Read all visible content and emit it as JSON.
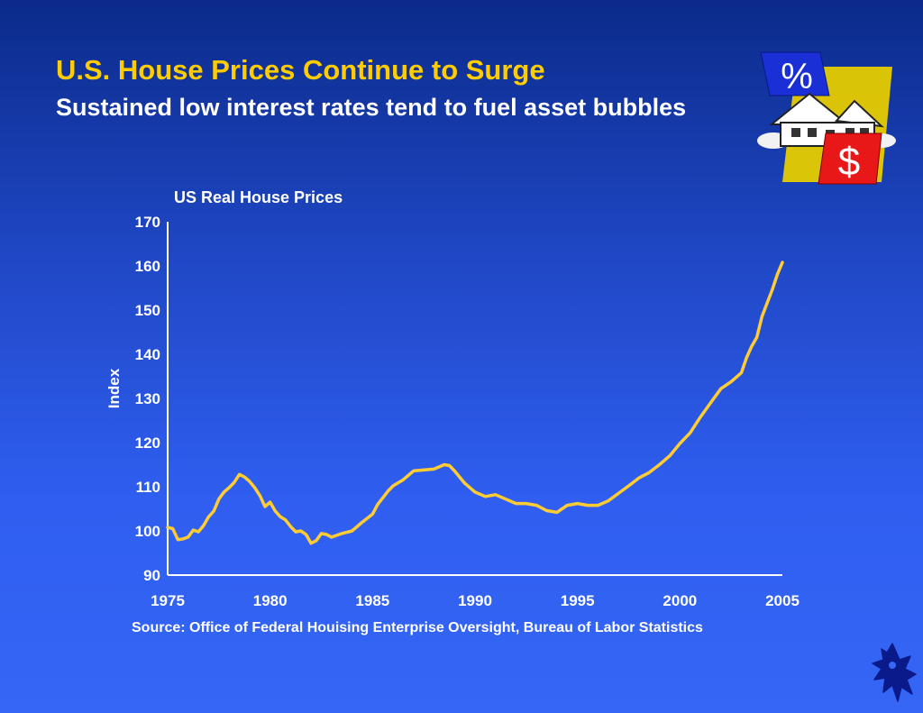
{
  "slide": {
    "title": "U.S. House Prices Continue to Surge",
    "subtitle": "Sustained low interest rates tend to fuel asset bubbles",
    "source": "Source: Office of Federal Houising Enterprise Oversight, Bureau of Labor Statistics",
    "icons": [
      "percent-sign-icon",
      "house-icon",
      "dollar-sign-icon",
      "griffin-logo-icon"
    ],
    "icon_text": {
      "percent": "%",
      "dollar": "$"
    }
  },
  "colors": {
    "title": "#ffcc00",
    "line": "#ffcc33",
    "axis": "#ffffff",
    "text": "#ffffff"
  },
  "chart_data": {
    "type": "line",
    "title": "US Real House Prices",
    "ylabel": "Index",
    "xlabel": "",
    "xlim": [
      1975,
      2005
    ],
    "ylim": [
      90,
      170
    ],
    "xticks": [
      1975,
      1980,
      1985,
      1990,
      1995,
      2000,
      2005
    ],
    "yticks": [
      90,
      100,
      110,
      120,
      130,
      140,
      150,
      160,
      170
    ],
    "grid": false,
    "series": [
      {
        "x": [
          1975.0,
          1975.25,
          1975.5,
          1975.75,
          1976.0,
          1976.25,
          1976.5,
          1976.75,
          1977.0,
          1977.25,
          1977.5,
          1977.75,
          1978.0,
          1978.25,
          1978.5,
          1978.75,
          1979.0,
          1979.25,
          1979.5,
          1979.75,
          1980.0,
          1980.25,
          1980.5,
          1980.75,
          1981.0,
          1981.25,
          1981.5,
          1981.75,
          1982.0,
          1982.25,
          1982.5,
          1982.75,
          1983.0,
          1983.5,
          1984.0,
          1984.5,
          1985.0,
          1985.25,
          1985.5,
          1985.75,
          1986.0,
          1986.5,
          1987.0,
          1987.5,
          1988.0,
          1988.5,
          1988.75,
          1989.0,
          1989.25,
          1989.5,
          1990.0,
          1990.5,
          1991.0,
          1991.5,
          1992.0,
          1992.5,
          1993.0,
          1993.5,
          1994.0,
          1994.5,
          1995.0,
          1995.5,
          1996.0,
          1996.5,
          1997.0,
          1997.5,
          1998.0,
          1998.5,
          1999.0,
          1999.5,
          2000.0,
          2000.5,
          2001.0,
          2001.5,
          2002.0,
          2002.5,
          2003.0,
          2003.25,
          2003.5,
          2003.75,
          2004.0,
          2004.25,
          2004.5,
          2004.75,
          2005.0
        ],
        "values": [
          100.8,
          100.5,
          98.0,
          98.2,
          98.6,
          100.2,
          99.8,
          101.2,
          103.2,
          104.5,
          107.2,
          108.8,
          109.8,
          111.0,
          112.8,
          112.2,
          111.2,
          109.8,
          108.0,
          105.5,
          106.5,
          104.5,
          103.2,
          102.5,
          101.0,
          99.8,
          100.0,
          99.2,
          97.2,
          97.8,
          99.4,
          99.2,
          98.6,
          99.4,
          100.0,
          102.0,
          103.8,
          106.0,
          107.5,
          109.0,
          110.2,
          111.6,
          113.6,
          113.8,
          114.0,
          115.0,
          114.8,
          113.6,
          112.2,
          110.8,
          108.8,
          107.8,
          108.2,
          107.2,
          106.2,
          106.2,
          105.8,
          104.6,
          104.2,
          105.8,
          106.2,
          105.8,
          105.8,
          106.8,
          108.5,
          110.2,
          112.0,
          113.2,
          115.0,
          117.0,
          119.8,
          122.2,
          125.8,
          129.0,
          132.2,
          133.8,
          135.8,
          139.2,
          141.8,
          143.8,
          148.5,
          151.5,
          154.5,
          158.0,
          160.8
        ]
      }
    ]
  }
}
